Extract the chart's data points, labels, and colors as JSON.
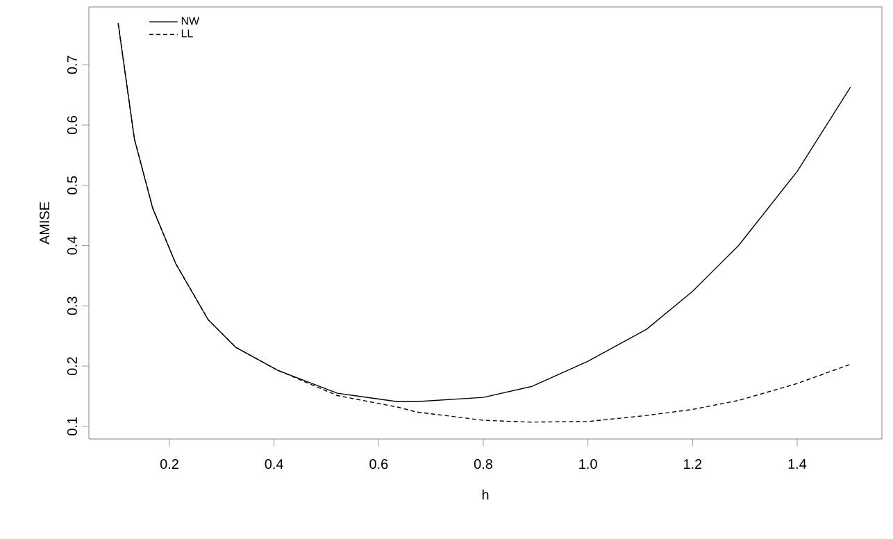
{
  "chart_data": {
    "type": "line",
    "xlabel": "h",
    "ylabel": "AMISE",
    "xlim": [
      0.046,
      1.562
    ],
    "ylim": [
      0.079,
      0.796
    ],
    "xticks": [
      {
        "value": 0.2,
        "label": "0.2"
      },
      {
        "value": 0.4,
        "label": "0.4"
      },
      {
        "value": 0.6,
        "label": "0.6"
      },
      {
        "value": 0.8,
        "label": "0.8"
      },
      {
        "value": 1.0,
        "label": "1.0"
      },
      {
        "value": 1.2,
        "label": "1.2"
      },
      {
        "value": 1.4,
        "label": "1.4"
      }
    ],
    "yticks": [
      0.1,
      0.2,
      0.3,
      0.4,
      0.5,
      0.6,
      0.7
    ],
    "legend": "top left",
    "grid": false,
    "marker": "none",
    "series": [
      {
        "name": "NW",
        "color": "#000000",
        "line_style": "solid",
        "x": [
          0.102,
          0.133,
          0.168,
          0.212,
          0.274,
          0.327,
          0.407,
          0.521,
          0.636,
          0.671,
          0.8,
          0.892,
          1.0,
          1.112,
          1.2,
          1.288,
          1.4,
          1.502
        ],
        "values": [
          0.769,
          0.577,
          0.462,
          0.37,
          0.277,
          0.231,
          0.193,
          0.155,
          0.141,
          0.141,
          0.148,
          0.166,
          0.208,
          0.261,
          0.324,
          0.4,
          0.523,
          0.663
        ]
      },
      {
        "name": "LL",
        "color": "#000000",
        "line_style": "dashed",
        "x": [
          0.102,
          0.133,
          0.168,
          0.212,
          0.274,
          0.327,
          0.407,
          0.521,
          0.636,
          0.671,
          0.8,
          0.892,
          1.0,
          1.112,
          1.2,
          1.288,
          1.4,
          1.502
        ],
        "values": [
          0.769,
          0.577,
          0.462,
          0.37,
          0.277,
          0.231,
          0.193,
          0.151,
          0.132,
          0.124,
          0.11,
          0.107,
          0.108,
          0.118,
          0.128,
          0.143,
          0.171,
          0.203
        ]
      }
    ]
  }
}
